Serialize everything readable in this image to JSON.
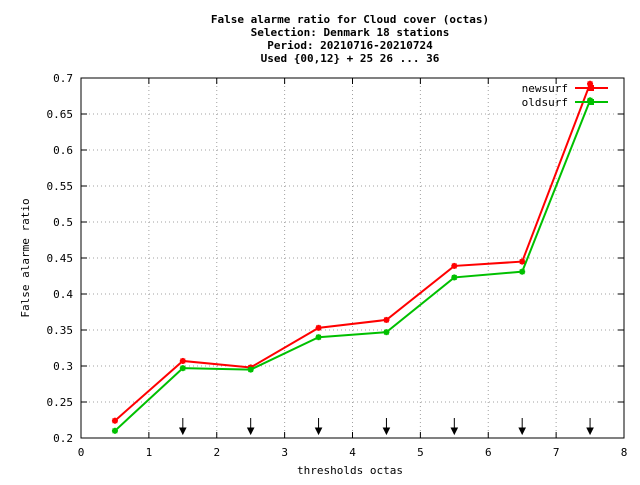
{
  "chart_data": {
    "type": "line",
    "title_lines": [
      "False alarme ratio  for Cloud cover (octas)",
      "Selection: Denmark     18 stations",
      "Period: 20210716-20210724",
      "Used {00,12} + 25 26 ... 36"
    ],
    "xlabel": "thresholds octas",
    "ylabel": "False alarme ratio",
    "xlim": [
      0,
      8
    ],
    "ylim": [
      0.2,
      0.7
    ],
    "x_ticks": [
      0,
      1,
      2,
      3,
      4,
      5,
      6,
      7,
      8
    ],
    "x_tick_labels": [
      "0",
      "1",
      "2",
      "3",
      "4",
      "5",
      "6",
      "7",
      "8"
    ],
    "y_ticks": [
      0.2,
      0.25,
      0.3,
      0.35,
      0.4,
      0.45,
      0.5,
      0.55,
      0.6,
      0.65,
      0.7
    ],
    "y_tick_labels": [
      "0.2",
      "0.25",
      "0.3",
      "0.35",
      "0.4",
      "0.45",
      "0.5",
      "0.55",
      "0.6",
      "0.65",
      "0.7"
    ],
    "grid": true,
    "legend_position": "top-right",
    "x": [
      0.5,
      1.5,
      2.5,
      3.5,
      4.5,
      5.5,
      6.5,
      7.5
    ],
    "series": [
      {
        "name": "newsurf",
        "color": "#ff0000",
        "values": [
          0.224,
          0.307,
          0.298,
          0.353,
          0.364,
          0.439,
          0.445,
          0.692
        ]
      },
      {
        "name": "oldsurf",
        "color": "#00c000",
        "values": [
          0.21,
          0.297,
          0.295,
          0.34,
          0.347,
          0.423,
          0.431,
          0.669
        ]
      }
    ],
    "arrow_markers_x": [
      1.5,
      2.5,
      3.5,
      4.5,
      5.5,
      6.5,
      7.5
    ]
  }
}
